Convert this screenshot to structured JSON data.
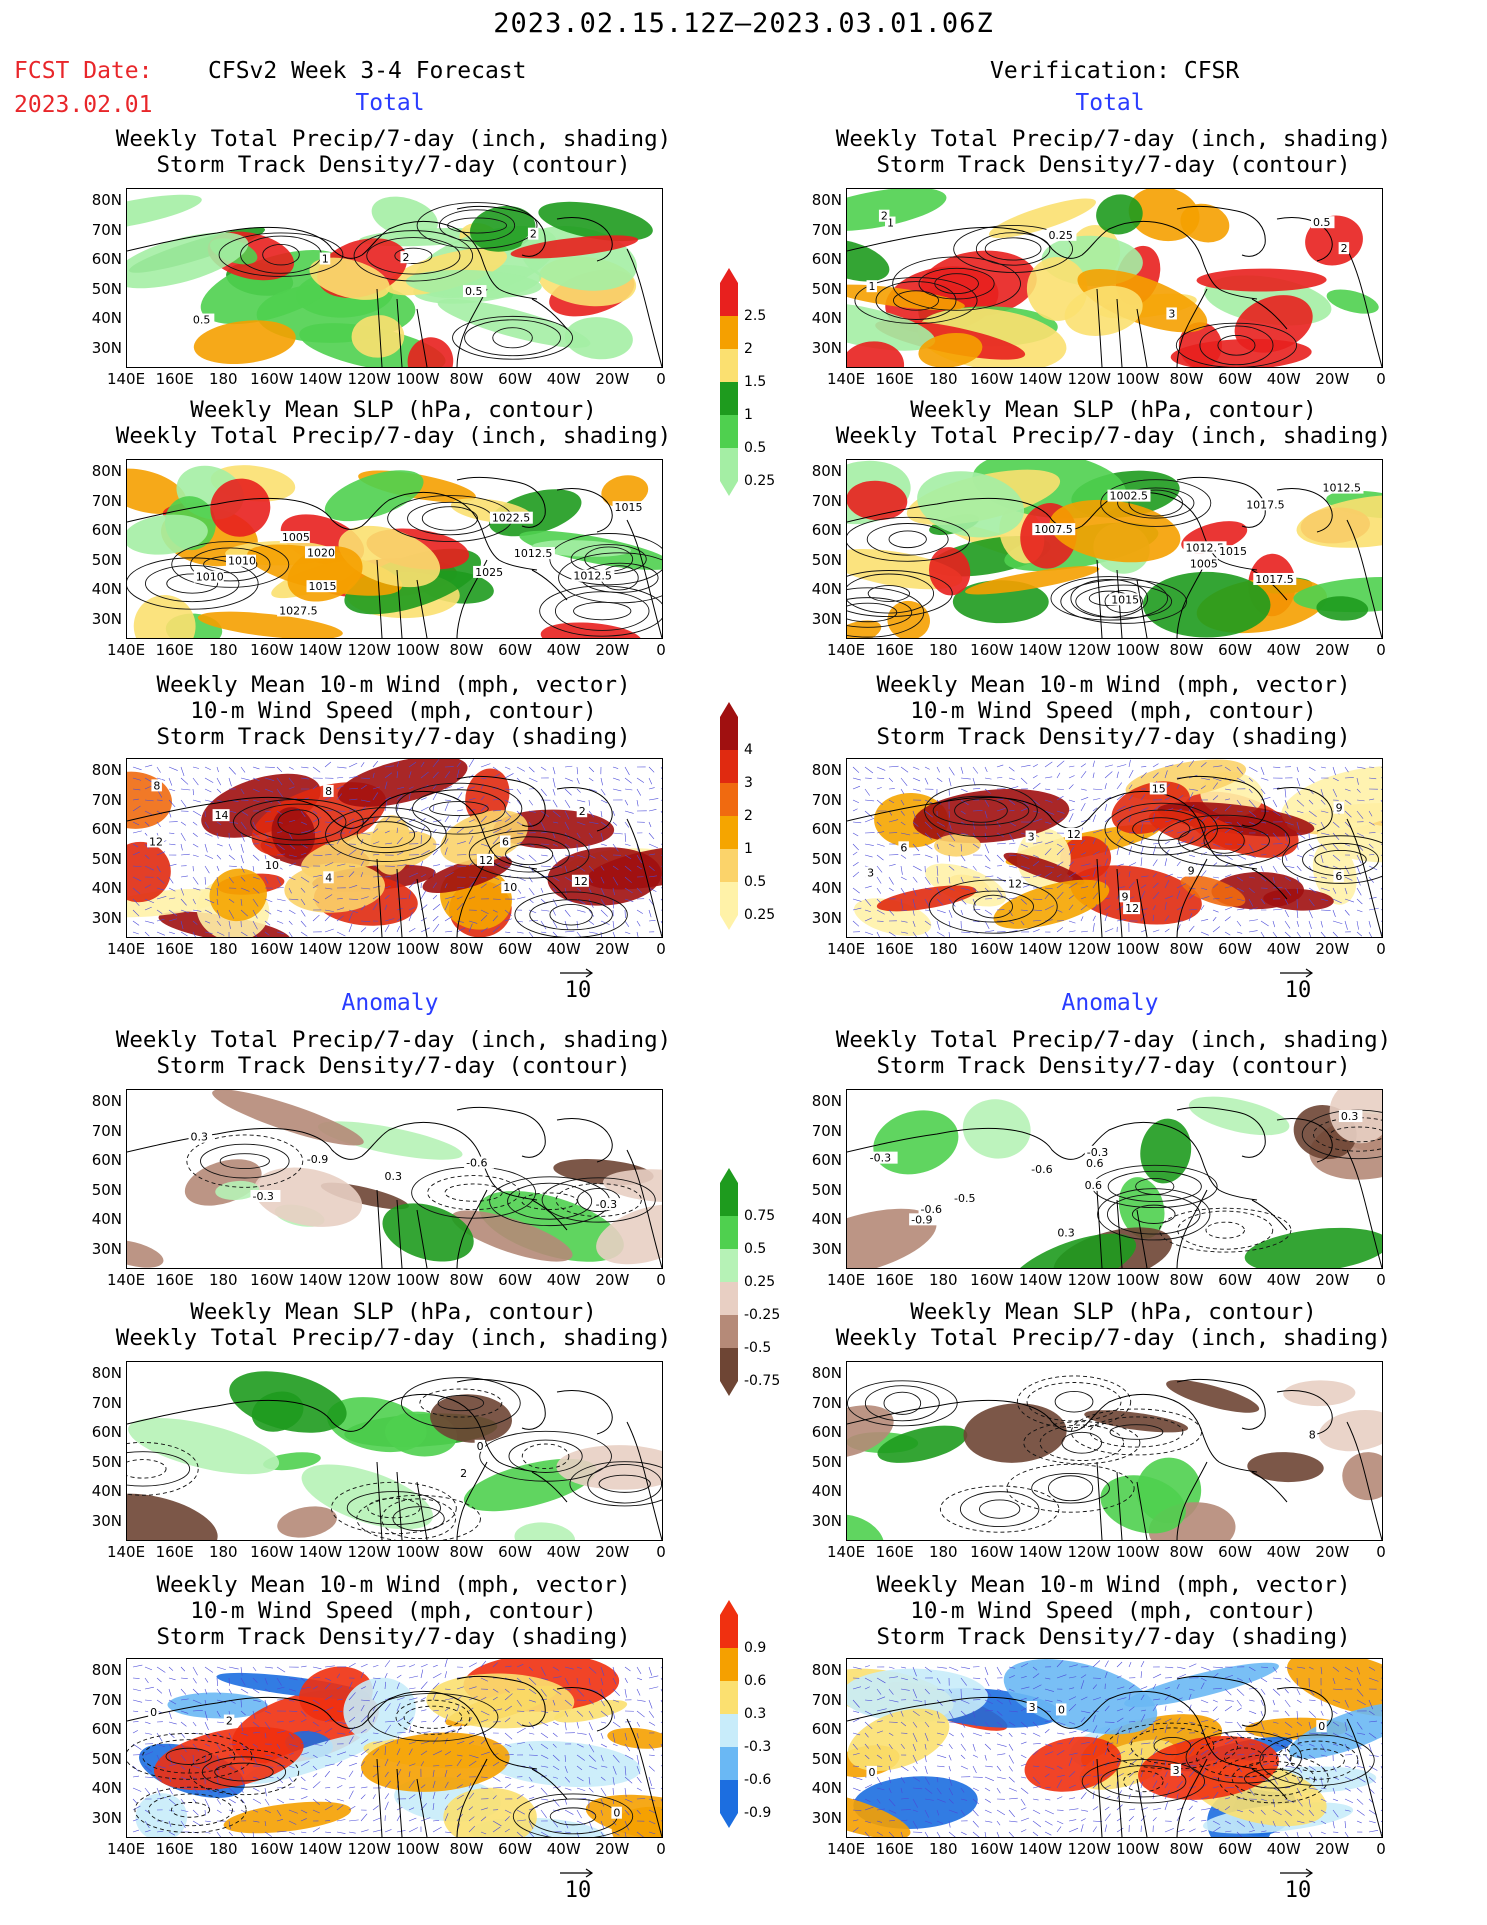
{
  "header": {
    "title": "2023.02.15.12Z—2023.03.01.06Z",
    "fcst_label": "FCST Date:",
    "fcst_date": "2023.02.01",
    "left_title": "CFSv2 Week 3-4 Forecast",
    "right_title": "Verification: CFSR"
  },
  "sections": {
    "total": "Total",
    "anomaly": "Anomaly"
  },
  "panel_titles": {
    "precip_storm": [
      "Weekly Total Precip/7-day (inch, shading)",
      "Storm Track Density/7-day (contour)"
    ],
    "slp_precip": [
      "Weekly Mean SLP (hPa, contour)",
      "Weekly Total Precip/7-day (inch, shading)"
    ],
    "wind_storm": [
      "Weekly Mean 10-m Wind (mph, vector)",
      "10-m Wind Speed (mph, contour)",
      "Storm Track Density/7-day (shading)"
    ]
  },
  "axes": {
    "lat_ticks": [
      "80N",
      "70N",
      "60N",
      "50N",
      "40N",
      "30N"
    ],
    "lon_ticks": [
      "140E",
      "160E",
      "180",
      "160W",
      "140W",
      "120W",
      "100W",
      "80W",
      "60W",
      "40W",
      "20W",
      "0"
    ]
  },
  "vector_ref": "10",
  "colorbars": {
    "total_precip": {
      "labels": [
        "2.5",
        "2",
        "1.5",
        "1",
        "0.5",
        "0.25"
      ],
      "colors": [
        "#e8201e",
        "#f5a000",
        "#fbe070",
        "#1e9b1e",
        "#4fd04f",
        "#a4eea4"
      ]
    },
    "total_storm": {
      "labels": [
        "4",
        "3",
        "2",
        "1",
        "0.5",
        "0.25"
      ],
      "colors": [
        "#a01010",
        "#e02a10",
        "#f06a10",
        "#f5a500",
        "#fbd36a",
        "#fff2a8"
      ]
    },
    "anom_precip": {
      "labels": [
        "0.75",
        "0.5",
        "0.25",
        "-0.25",
        "-0.5",
        "-0.75"
      ],
      "colors": [
        "#1e9b1e",
        "#4fd04f",
        "#b6f2b6",
        "#e8cfc3",
        "#b58a78",
        "#6e4534"
      ]
    },
    "anom_storm": {
      "labels": [
        "0.9",
        "0.6",
        "0.3",
        "-0.3",
        "-0.6",
        "-0.9"
      ],
      "colors": [
        "#f03010",
        "#f5a000",
        "#fbe070",
        "#c8ecfa",
        "#6ab8f4",
        "#1c6ee0"
      ]
    }
  },
  "contour_labels": {
    "p1": [
      "2",
      "1",
      "0.5",
      "2",
      "0.5"
    ],
    "p2": [
      "1",
      "2",
      "1",
      "0.5",
      "2",
      "3",
      "0.25"
    ],
    "p3": [
      "1027.5",
      "1025",
      "1020",
      "1015",
      "1012.5",
      "1022.5",
      "1010",
      "1015",
      "1012.5",
      "1010",
      "1005"
    ],
    "p4": [
      "1015",
      "1007.5",
      "1012.5",
      "1015",
      "1017.5",
      "1017.5",
      "1012.5",
      "1005",
      "1002.5"
    ],
    "p5": [
      "10",
      "8",
      "12",
      "14",
      "12",
      "2",
      "6",
      "8",
      "10",
      "12",
      "4"
    ],
    "p6": [
      "6",
      "9",
      "3",
      "12",
      "15",
      "3",
      "9",
      "6",
      "9",
      "12",
      "12"
    ],
    "p7": [
      "-0.3",
      "-0.9",
      "-0.6",
      "-0.3",
      "0.3",
      "0.3"
    ],
    "p8": [
      "0.6",
      "0.3",
      "-0.3",
      "-0.6",
      "0.3",
      "-0.5",
      "-0.6",
      "0.6",
      "-0.3",
      "-0.9"
    ],
    "p9": [
      "0",
      "2"
    ],
    "p10": [
      "8"
    ],
    "p11": [
      "2",
      "0",
      "0"
    ],
    "p12": [
      "0",
      "3",
      "3",
      "0",
      "0"
    ]
  }
}
